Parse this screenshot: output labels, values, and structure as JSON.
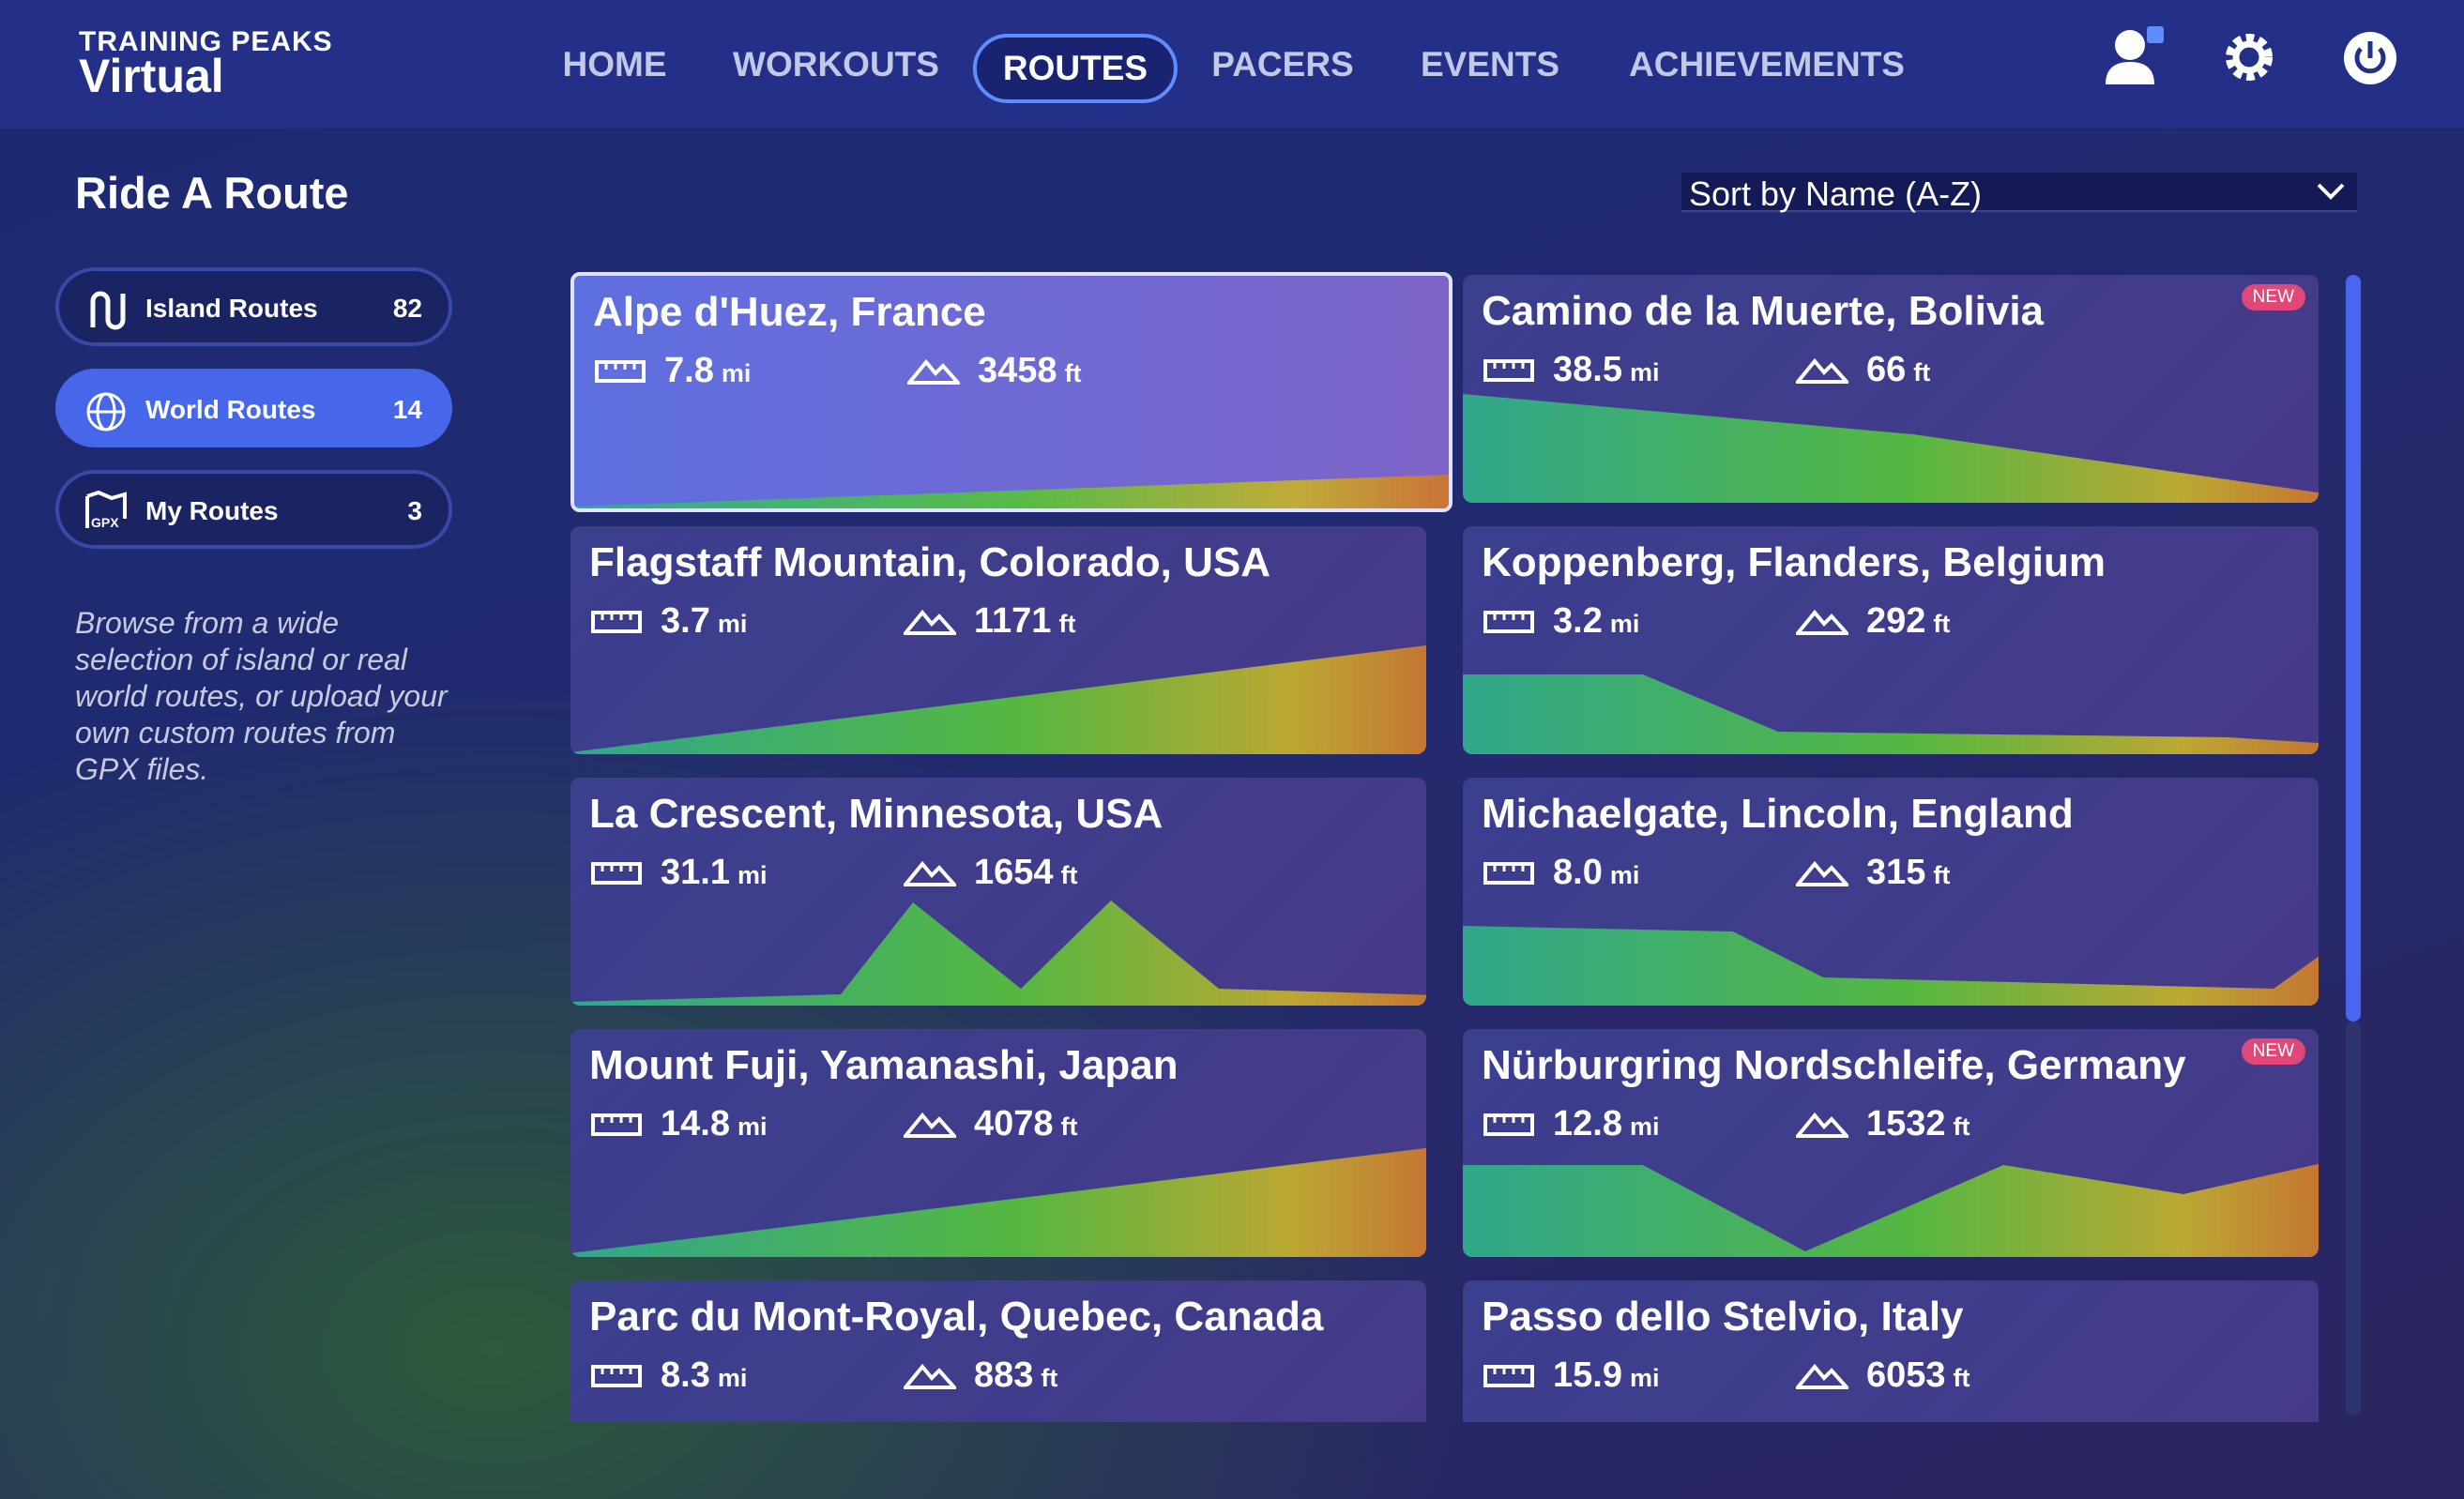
{
  "header": {
    "logo_top": "TRAINING PEAKS",
    "logo_bottom": "Virtual",
    "nav": [
      {
        "label": "HOME"
      },
      {
        "label": "WORKOUTS"
      },
      {
        "label": "ROUTES",
        "active": true
      },
      {
        "label": "PACERS"
      },
      {
        "label": "EVENTS"
      },
      {
        "label": "ACHIEVEMENTS"
      }
    ]
  },
  "sidebar": {
    "title": "Ride A Route",
    "items": [
      {
        "label": "Island Routes",
        "count": "82"
      },
      {
        "label": "World Routes",
        "count": "14",
        "active": true
      },
      {
        "label": "My Routes",
        "count": "3",
        "icon_text": "GPX"
      }
    ],
    "description": "Browse from a wide selection of island or real world routes, or upload your own custom routes from GPX files."
  },
  "sort": {
    "label": "Sort by Name (A-Z)"
  },
  "routes": [
    {
      "name": "Alpe d'Huez, France",
      "distance": "7.8",
      "distance_unit": "mi",
      "elevation": "3458",
      "elevation_unit": "ft",
      "selected": true
    },
    {
      "name": "Camino de la Muerte, Bolivia",
      "distance": "38.5",
      "distance_unit": "mi",
      "elevation": "66",
      "elevation_unit": "ft",
      "badge": "NEW"
    },
    {
      "name": "Flagstaff Mountain, Colorado, USA",
      "distance": "3.7",
      "distance_unit": "mi",
      "elevation": "1171",
      "elevation_unit": "ft"
    },
    {
      "name": "Koppenberg, Flanders, Belgium",
      "distance": "3.2",
      "distance_unit": "mi",
      "elevation": "292",
      "elevation_unit": "ft"
    },
    {
      "name": "La Crescent, Minnesota, USA",
      "distance": "31.1",
      "distance_unit": "mi",
      "elevation": "1654",
      "elevation_unit": "ft"
    },
    {
      "name": "Michaelgate, Lincoln, England",
      "distance": "8.0",
      "distance_unit": "mi",
      "elevation": "315",
      "elevation_unit": "ft"
    },
    {
      "name": "Mount Fuji, Yamanashi, Japan",
      "distance": "14.8",
      "distance_unit": "mi",
      "elevation": "4078",
      "elevation_unit": "ft"
    },
    {
      "name": "Nürburgring Nordschleife, Germany",
      "distance": "12.8",
      "distance_unit": "mi",
      "elevation": "1532",
      "elevation_unit": "ft",
      "badge": "NEW"
    },
    {
      "name": "Parc du Mont-Royal, Quebec, Canada",
      "distance": "8.3",
      "distance_unit": "mi",
      "elevation": "883",
      "elevation_unit": "ft"
    },
    {
      "name": "Passo dello Stelvio, Italy",
      "distance": "15.9",
      "distance_unit": "mi",
      "elevation": "6053",
      "elevation_unit": "ft"
    }
  ]
}
